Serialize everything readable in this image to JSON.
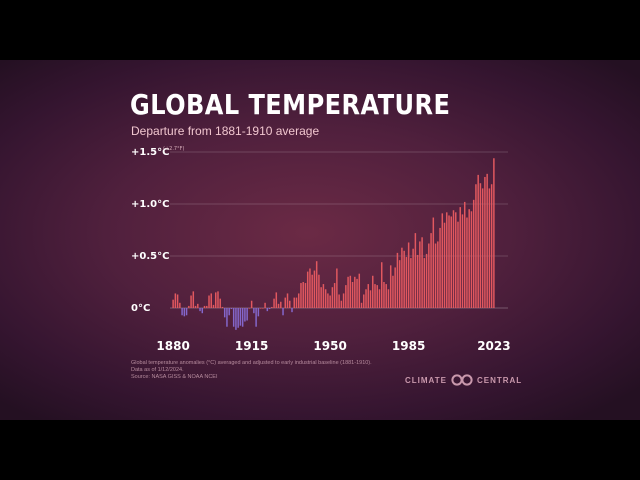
{
  "header": {
    "title": "GLOBAL TEMPERATURE",
    "subtitle": "Departure from 1881-1910 average"
  },
  "footnotes": [
    "Global temperature anomalies (°C) averaged and adjusted to early industrial baseline (1881-1910).",
    "Data as of 1/12/2024.",
    "Source: NASA GISS & NOAA NCEI"
  ],
  "logo": {
    "left_text": "CLIMATE",
    "right_text": "CENTRAL",
    "icon": "climate-central-logo-icon",
    "color": "#c998ac"
  },
  "colors": {
    "warm_bar": "#e2585f",
    "cool_bar": "#8467cc",
    "gridline": "#ffffff"
  },
  "chart_data": {
    "type": "bar",
    "title": "GLOBAL TEMPERATURE",
    "subtitle": "Departure from 1881-1910 average",
    "ylim": [
      -0.4,
      1.5
    ],
    "yticks": [
      {
        "value": 0,
        "label": "0°C",
        "sub": ""
      },
      {
        "value": 0.5,
        "label": "+0.5°C",
        "sub": ""
      },
      {
        "value": 1.0,
        "label": "+1.0°C",
        "sub": ""
      },
      {
        "value": 1.5,
        "label": "+1.5°C",
        "sub": "(+2.7°F)"
      }
    ],
    "xticks": [
      1880,
      1915,
      1950,
      1985,
      2023
    ],
    "grid": true,
    "x_start": 1880,
    "x_end": 2023,
    "values": [
      0.08,
      0.14,
      0.13,
      0.05,
      -0.07,
      -0.08,
      -0.07,
      0.02,
      0.12,
      0.16,
      0.02,
      0.04,
      -0.03,
      -0.05,
      0.02,
      0.02,
      0.12,
      0.14,
      0.03,
      0.15,
      0.16,
      0.09,
      0.01,
      -0.09,
      -0.18,
      -0.07,
      -0.01,
      -0.18,
      -0.21,
      -0.19,
      -0.17,
      -0.18,
      -0.13,
      -0.12,
      0.0,
      0.07,
      -0.05,
      -0.18,
      -0.08,
      0.0,
      0.0,
      0.05,
      -0.03,
      -0.01,
      0.01,
      0.09,
      0.15,
      0.04,
      0.06,
      -0.07,
      0.1,
      0.14,
      0.07,
      -0.04,
      0.1,
      0.1,
      0.14,
      0.24,
      0.25,
      0.24,
      0.35,
      0.38,
      0.32,
      0.36,
      0.45,
      0.32,
      0.2,
      0.23,
      0.18,
      0.14,
      0.12,
      0.2,
      0.24,
      0.38,
      0.13,
      0.07,
      0.14,
      0.22,
      0.3,
      0.31,
      0.25,
      0.3,
      0.28,
      0.33,
      0.05,
      0.13,
      0.18,
      0.23,
      0.17,
      0.31,
      0.23,
      0.22,
      0.18,
      0.44,
      0.25,
      0.23,
      0.18,
      0.41,
      0.31,
      0.39,
      0.53,
      0.46,
      0.58,
      0.55,
      0.49,
      0.63,
      0.48,
      0.57,
      0.72,
      0.51,
      0.64,
      0.68,
      0.48,
      0.52,
      0.62,
      0.72,
      0.87,
      0.62,
      0.64,
      0.77,
      0.91,
      0.82,
      0.92,
      0.89,
      0.88,
      0.94,
      0.92,
      0.83,
      0.97,
      0.9,
      1.02,
      0.87,
      0.95,
      0.93,
      1.04,
      1.19,
      1.28,
      1.2,
      1.15,
      1.26,
      1.29,
      1.15,
      1.19,
      1.44
    ]
  }
}
